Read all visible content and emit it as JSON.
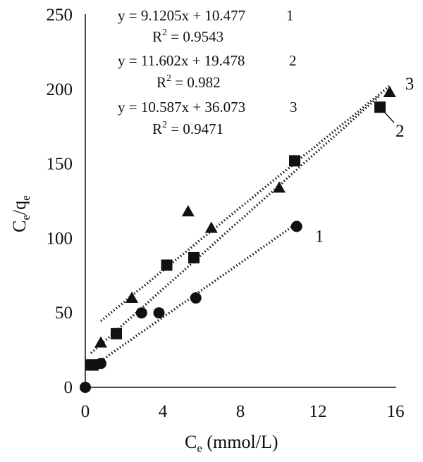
{
  "chart_data": {
    "type": "scatter",
    "title": "",
    "xlabel": {
      "main": "C",
      "sub": "e",
      "rest": " (mmol/L)"
    },
    "ylabel": {
      "main1": "C",
      "sub1": "e",
      "mid": "/q",
      "sub2": "e"
    },
    "xlim": [
      0,
      16
    ],
    "ylim": [
      0,
      250
    ],
    "xticks": [
      0,
      4,
      8,
      12,
      16
    ],
    "yticks": [
      0,
      50,
      100,
      150,
      200,
      250
    ],
    "grid": false,
    "series": [
      {
        "name": "1",
        "marker": "circle",
        "points": [
          [
            0,
            0
          ],
          [
            0.8,
            16
          ],
          [
            2.9,
            50
          ],
          [
            3.8,
            50
          ],
          [
            5.7,
            60
          ],
          [
            10.9,
            108
          ]
        ],
        "trendline": {
          "slope": 9.1205,
          "intercept": 10.477,
          "x_range": [
            0.8,
            10.9
          ]
        },
        "equation": "y = 9.1205x + 10.477",
        "r2_value": " = 0.9543"
      },
      {
        "name": "2",
        "marker": "square",
        "points": [
          [
            0.3,
            15
          ],
          [
            0.4,
            15
          ],
          [
            1.6,
            36
          ],
          [
            4.2,
            82
          ],
          [
            5.6,
            87
          ],
          [
            10.8,
            152
          ],
          [
            15.2,
            188
          ]
        ],
        "trendline": {
          "slope": 11.602,
          "intercept": 19.478,
          "x_range": [
            0.3,
            15.2
          ]
        },
        "equation": "y = 11.602x + 19.478",
        "r2_value": " = 0.982"
      },
      {
        "name": "3",
        "marker": "triangle",
        "points": [
          [
            0.8,
            30
          ],
          [
            2.4,
            60
          ],
          [
            5.3,
            118
          ],
          [
            6.5,
            107
          ],
          [
            10.0,
            134
          ],
          [
            15.7,
            198
          ]
        ],
        "trendline": {
          "slope": 10.587,
          "intercept": 36.073,
          "x_range": [
            0.8,
            15.7
          ]
        },
        "equation": "y = 10.587x + 36.073",
        "r2_value": " = 0.9471"
      }
    ],
    "r2_prefix": "R",
    "r2_exp": "2"
  }
}
